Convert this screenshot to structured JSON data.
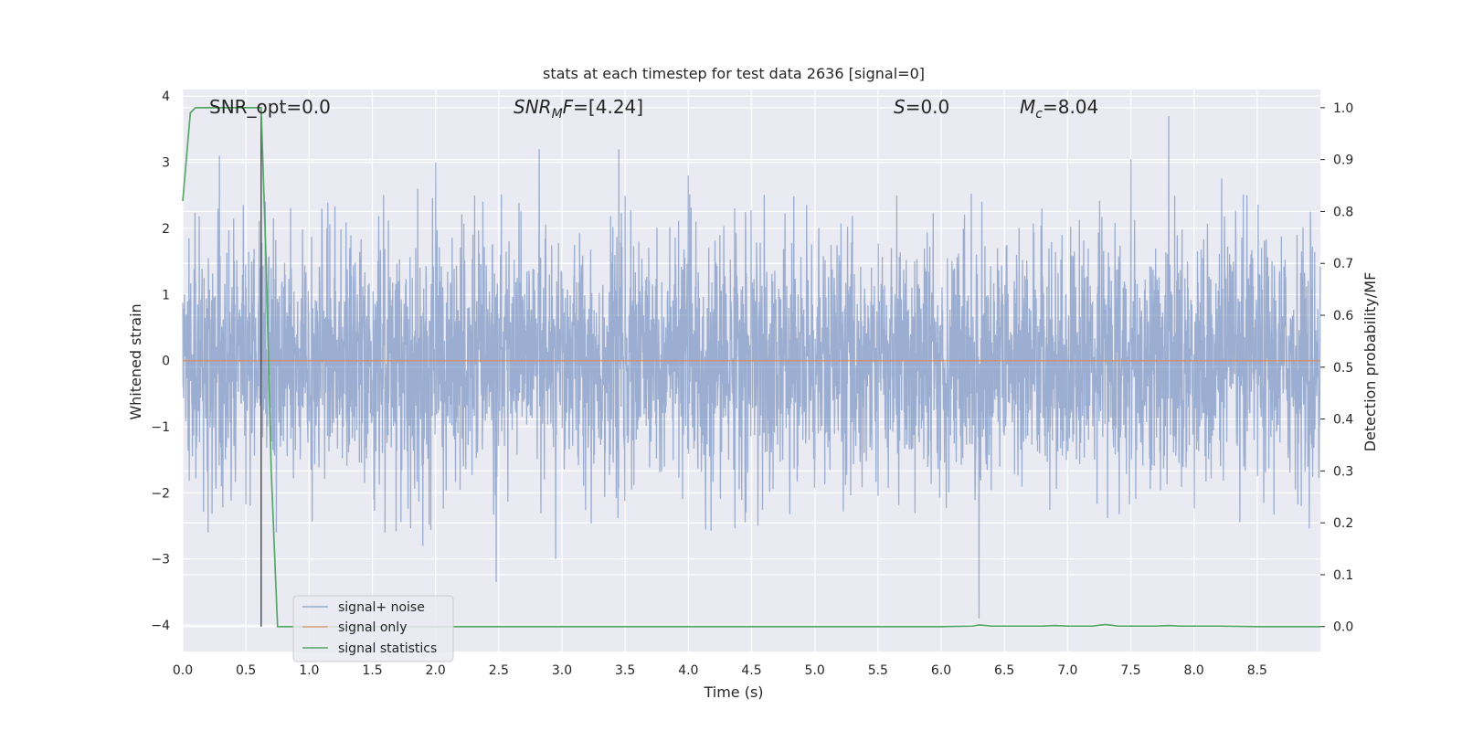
{
  "chart_data": {
    "type": "line",
    "title": "stats at each timestep for test data 2636 [signal=0]",
    "xlabel": "Time (s)",
    "ylabel": "Whitened strain",
    "y2label": "Detection probability/MF",
    "xlim": [
      0.0,
      9.0
    ],
    "ylim": [
      -4.4,
      4.1
    ],
    "y2lim": [
      -0.048,
      1.035
    ],
    "x_ticks": [
      "0.0",
      "0.5",
      "1.0",
      "1.5",
      "2.0",
      "2.5",
      "3.0",
      "3.5",
      "4.0",
      "4.5",
      "5.0",
      "5.5",
      "6.0",
      "6.5",
      "7.0",
      "7.5",
      "8.0",
      "8.5"
    ],
    "y_ticks": [
      "4",
      "3",
      "2",
      "1",
      "0",
      "−1",
      "−2",
      "−3",
      "−4"
    ],
    "y2_ticks": [
      "1.0",
      "0.9",
      "0.8",
      "0.7",
      "0.6",
      "0.5",
      "0.4",
      "0.3",
      "0.2",
      "0.1",
      "0.0"
    ],
    "grid": true,
    "legend_position": "lower-left",
    "annotations": {
      "snr_opt": "SNR_opt=0.0",
      "snr_mf_sym": "SNR",
      "snr_mf_sub": "M",
      "snr_mf_rest": "F=[4.24]",
      "s_sym": "S",
      "s_rest": "=0.0",
      "mc_sym": "M",
      "mc_sub": "c",
      "mc_rest": "=8.04"
    },
    "marker_line_x": 0.62,
    "series": [
      {
        "name": "signal+ noise",
        "color": "#4c72b0",
        "axis": "left",
        "amplitude_std": 0.9,
        "peak_values": [
          {
            "x": 0.05,
            "y": 1.85
          },
          {
            "x": 0.28,
            "y": 2.3
          },
          {
            "x": 0.29,
            "y": -2.75
          },
          {
            "x": 0.2,
            "y": -2.6
          },
          {
            "x": 0.29,
            "y": 3.1
          },
          {
            "x": 0.74,
            "y": -2.6
          },
          {
            "x": 1.1,
            "y": 2.3
          },
          {
            "x": 1.6,
            "y": -2.6
          },
          {
            "x": 1.86,
            "y": 2.6
          },
          {
            "x": 1.9,
            "y": -2.8
          },
          {
            "x": 2.0,
            "y": 3.0
          },
          {
            "x": 2.48,
            "y": -3.35
          },
          {
            "x": 2.82,
            "y": 3.2
          },
          {
            "x": 2.95,
            "y": -3.0
          },
          {
            "x": 3.45,
            "y": 3.2
          },
          {
            "x": 4.0,
            "y": 2.8
          },
          {
            "x": 4.55,
            "y": -2.5
          },
          {
            "x": 5.65,
            "y": 2.5
          },
          {
            "x": 6.3,
            "y": -3.9
          },
          {
            "x": 7.5,
            "y": 3.05
          },
          {
            "x": 7.8,
            "y": 3.7
          },
          {
            "x": 8.22,
            "y": 2.75
          },
          {
            "x": 8.42,
            "y": 2.5
          }
        ]
      },
      {
        "name": "signal only",
        "color": "#dd8452",
        "axis": "left",
        "points": [
          [
            0.0,
            0.0
          ],
          [
            9.0,
            0.0
          ]
        ]
      },
      {
        "name": "signal statistics",
        "color": "#55a868",
        "axis": "right",
        "points": [
          [
            0.0,
            0.82
          ],
          [
            0.06,
            0.99
          ],
          [
            0.1,
            1.0
          ],
          [
            0.2,
            1.0
          ],
          [
            0.4,
            1.0
          ],
          [
            0.62,
            1.0
          ],
          [
            0.66,
            0.7
          ],
          [
            0.7,
            0.3
          ],
          [
            0.75,
            0.0
          ],
          [
            1.0,
            0.0
          ],
          [
            2.0,
            0.0
          ],
          [
            3.0,
            0.0
          ],
          [
            4.0,
            0.0
          ],
          [
            5.0,
            0.0
          ],
          [
            6.0,
            0.0
          ],
          [
            6.25,
            0.001
          ],
          [
            6.3,
            0.003
          ],
          [
            6.4,
            0.001
          ],
          [
            6.8,
            0.001
          ],
          [
            6.9,
            0.002
          ],
          [
            7.0,
            0.001
          ],
          [
            7.2,
            0.001
          ],
          [
            7.3,
            0.004
          ],
          [
            7.4,
            0.001
          ],
          [
            7.7,
            0.001
          ],
          [
            7.8,
            0.002
          ],
          [
            7.9,
            0.001
          ],
          [
            8.2,
            0.001
          ],
          [
            8.5,
            0.0
          ],
          [
            9.0,
            0.0
          ]
        ]
      }
    ]
  }
}
